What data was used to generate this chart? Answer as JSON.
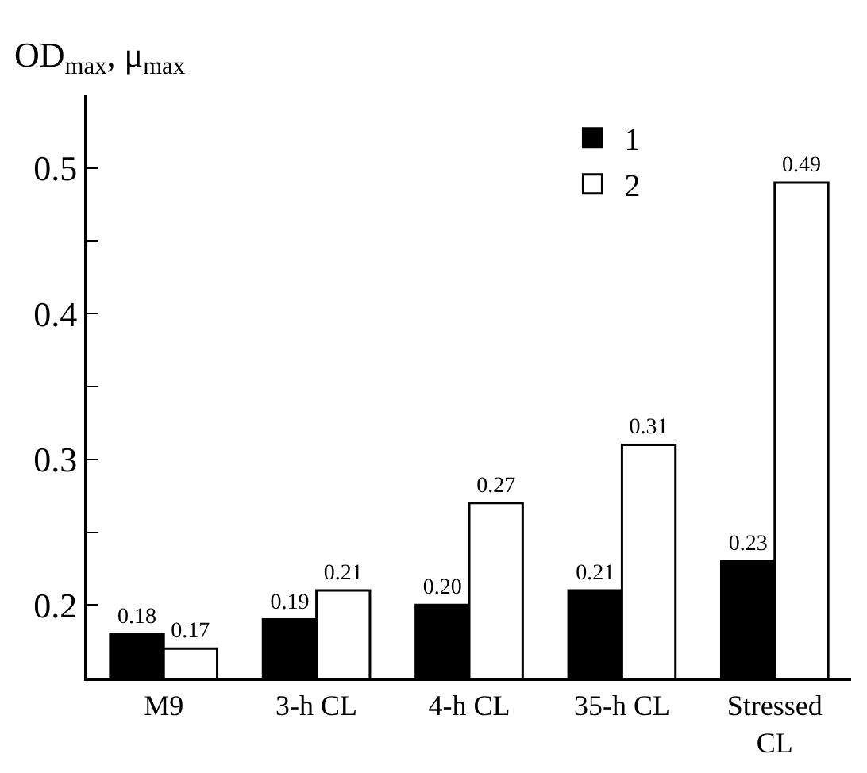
{
  "chart_data": {
    "type": "bar",
    "ylabel": "OD$_{max}$, μ$_{max}$",
    "categories": [
      "M9",
      "3-h CL",
      "4-h CL",
      "35-h CL",
      "Stressed CL"
    ],
    "series": [
      {
        "name": "1",
        "color": "#000000",
        "values": [
          0.18,
          0.19,
          0.2,
          0.21,
          0.23
        ],
        "value_labels": [
          "0.18",
          "0.19",
          "0.20",
          "0.21",
          "0.23"
        ]
      },
      {
        "name": "2",
        "color": "#ffffff",
        "values": [
          0.17,
          0.21,
          0.27,
          0.31,
          0.49
        ],
        "value_labels": [
          "0.17",
          "0.21",
          "0.27",
          "0.31",
          "0.49"
        ]
      }
    ],
    "ylim": [
      0.15,
      0.55
    ],
    "yticks": [
      0.2,
      {
        "value": 0.25,
        "label": null
      },
      0.3,
      {
        "value": 0.35,
        "label": null
      },
      0.4,
      {
        "value": 0.45,
        "label": null
      },
      0.5
    ],
    "legend": "top right"
  }
}
